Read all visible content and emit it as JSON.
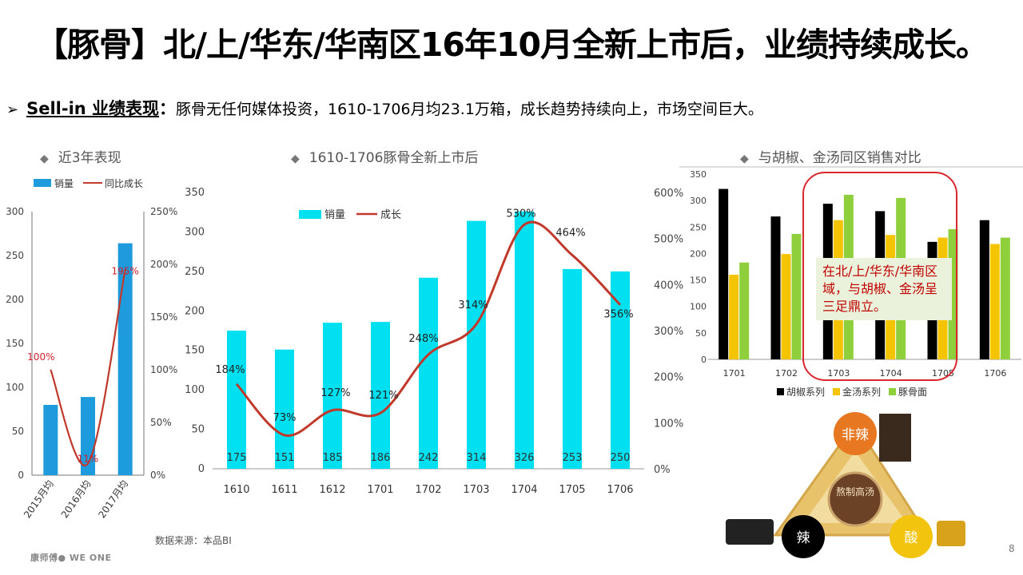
{
  "slide": {
    "title": "【豚骨】北/上/华东/华南区16年10月全新上市后，业绩持续成长。",
    "bullet_arrow": "➢",
    "bullet_head": "Sell-in 业绩表现",
    "bullet_colon": "：",
    "bullet_text": "豚骨无任何媒体投资，1610-1706月均23.1万箱，成长趋势持续向上，市场空间巨大。",
    "source": "数据来源：本品BI",
    "page_number": "8",
    "logo_text": "康师傅● WE ONE"
  },
  "sections": {
    "s1": "近3年表现",
    "s2": "1610-1706豚骨全新上市后",
    "s3": "与胡椒、金汤同区销售对比",
    "diamond": "◆"
  },
  "callout": "在北/上/华东/华南区域，与胡椒、金汤呈三足鼎立。",
  "diagram": {
    "top": "非辣",
    "left": "辣",
    "right": "酸",
    "center": "熬制高汤"
  },
  "colors": {
    "bar_blue": "#1e9bdc",
    "bar_cyan": "#00e0f0",
    "line_red": "#c0392b",
    "black": "#000000",
    "gold": "#f5c400",
    "green": "#8fcf3c"
  },
  "chart_data": [
    {
      "type": "bar",
      "categories": [
        "2015月均",
        "2016月均",
        "2017月均"
      ],
      "series": [
        {
          "name": "销量",
          "values": [
            80,
            89,
            264
          ]
        },
        {
          "name": "同比成长",
          "values": [
            100,
            11,
            195
          ]
        }
      ],
      "labels": [
        "100%",
        "11%",
        "195%"
      ],
      "ylim": [
        0,
        300
      ],
      "yticks": [
        "0",
        "50",
        "100",
        "150",
        "200",
        "250",
        "300"
      ],
      "y2lim": [
        0,
        250
      ],
      "y2ticks": [
        "0%",
        "50%",
        "100%",
        "150%",
        "200%",
        "250%"
      ]
    },
    {
      "type": "bar",
      "categories": [
        "1610",
        "1611",
        "1612",
        "1701",
        "1702",
        "1703",
        "1704",
        "1705",
        "1706"
      ],
      "series": [
        {
          "name": "销量",
          "values": [
            175,
            151,
            185,
            186,
            242,
            314,
            326,
            253,
            250
          ]
        },
        {
          "name": "成长",
          "values": [
            184,
            73,
            127,
            121,
            248,
            314,
            530,
            464,
            356
          ]
        }
      ],
      "value_labels": [
        "175",
        "151",
        "185",
        "186",
        "242",
        "314",
        "326",
        "253",
        "250"
      ],
      "growth_labels": [
        "184%",
        "73%",
        "127%",
        "121%",
        "248%",
        "314%",
        "530%",
        "464%",
        "356%"
      ],
      "ylim": [
        0,
        350
      ],
      "yticks": [
        "0",
        "50",
        "100",
        "150",
        "200",
        "250",
        "300",
        "350"
      ],
      "y2lim": [
        0,
        600
      ],
      "y2ticks": [
        "0%",
        "100%",
        "200%",
        "300%",
        "400%",
        "500%",
        "600%"
      ]
    },
    {
      "type": "bar",
      "categories": [
        "1701",
        "1702",
        "1703",
        "1704",
        "1705",
        "1706"
      ],
      "series": [
        {
          "name": "胡椒系列",
          "values": [
            322,
            270,
            294,
            280,
            222,
            263
          ]
        },
        {
          "name": "金汤系列",
          "values": [
            160,
            199,
            263,
            235,
            230,
            218
          ]
        },
        {
          "name": "豚骨面",
          "values": [
            183,
            237,
            311,
            305,
            246,
            230
          ]
        }
      ],
      "ylim": [
        0,
        350
      ],
      "yticks": [
        "0",
        "50",
        "100",
        "150",
        "200",
        "250",
        "300",
        "350"
      ]
    }
  ]
}
